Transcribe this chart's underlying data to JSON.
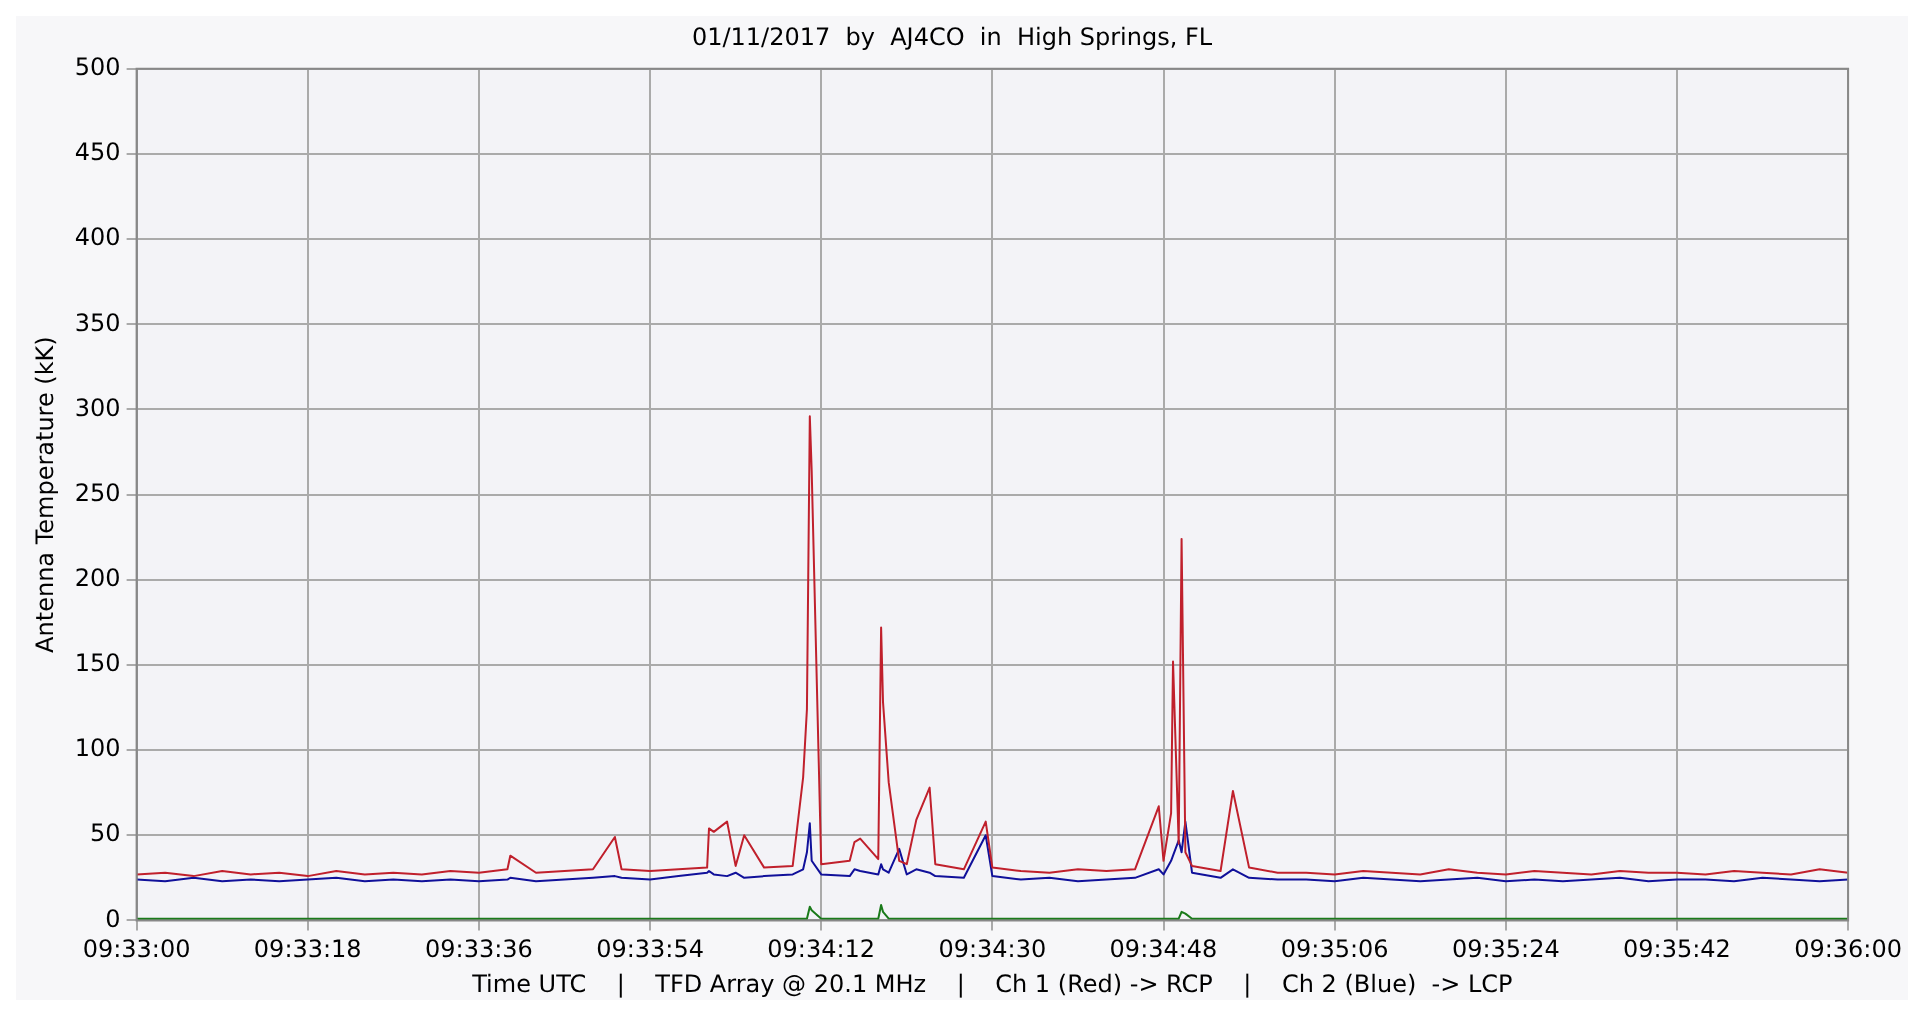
{
  "chart_data": {
    "type": "line",
    "title": "01/11/2017  by  AJ4CO  in  High Springs, FL",
    "xlabel": "Time UTC    |    TFD Array @ 20.1 MHz    |    Ch 1 (Red) -> RCP    |    Ch 2 (Blue)  -> LCP",
    "ylabel": "Antenna Temperature (kK)",
    "x": [
      9.55,
      9.550833,
      9.551667,
      9.5525,
      9.553333,
      9.554167,
      9.555,
      9.555833,
      9.556667,
      9.5575,
      9.558333,
      9.559167,
      9.56,
      9.560833,
      9.560917,
      9.561667,
      9.5625,
      9.563333,
      9.563972,
      9.564167,
      9.565,
      9.565833,
      9.566667,
      9.566722,
      9.566861,
      9.56725,
      9.5675,
      9.56775,
      9.568333,
      9.569167,
      9.569472,
      9.569583,
      9.569667,
      9.569722,
      9.57,
      9.570833,
      9.570972,
      9.571139,
      9.571667,
      9.57175,
      9.571806,
      9.571972,
      9.572278,
      9.5725,
      9.572778,
      9.573167,
      9.573333,
      9.574167,
      9.574806,
      9.575,
      9.575833,
      9.576667,
      9.5775,
      9.578333,
      9.579167,
      9.579861,
      9.58,
      9.580222,
      9.580278,
      9.580444,
      9.580528,
      9.580639,
      9.580833,
      9.581667,
      9.582028,
      9.5825,
      9.583333,
      9.584167,
      9.585,
      9.585833,
      9.586667,
      9.5875,
      9.588333,
      9.589167,
      9.59,
      9.590833,
      9.591667,
      9.5925,
      9.593333,
      9.594167,
      9.595,
      9.595833,
      9.596667,
      9.5975,
      9.598333,
      9.599167,
      9.6
    ],
    "series": [
      {
        "color": "#c0202c",
        "values": [
          27,
          28,
          26,
          29,
          27,
          28,
          26,
          29,
          27,
          28,
          27,
          29,
          28,
          30,
          38,
          28,
          29,
          30,
          49,
          30,
          29,
          30,
          31,
          54,
          52,
          58,
          32,
          50,
          31,
          32,
          84,
          124,
          296,
          264,
          33,
          35,
          46,
          48,
          36,
          172,
          128,
          81,
          35,
          33,
          59,
          78,
          33,
          30,
          58,
          31,
          29,
          28,
          30,
          29,
          30,
          67,
          35,
          63,
          152,
          45,
          224,
          40,
          32,
          29,
          76,
          31,
          28,
          28,
          27,
          29,
          28,
          27,
          30,
          28,
          27,
          29,
          28,
          27,
          29,
          28,
          28,
          27,
          29,
          28,
          27,
          30,
          28
        ]
      },
      {
        "color": "#10109a",
        "values": [
          24,
          23,
          25,
          23,
          24,
          23,
          24,
          25,
          23,
          24,
          23,
          24,
          23,
          24,
          25,
          23,
          24,
          25,
          26,
          25,
          24,
          26,
          28,
          29,
          27,
          26,
          28,
          25,
          26,
          27,
          30,
          40,
          57,
          35,
          27,
          26,
          30,
          29,
          27,
          33,
          30,
          28,
          42,
          27,
          30,
          28,
          26,
          25,
          50,
          26,
          24,
          25,
          23,
          24,
          25,
          30,
          27,
          35,
          38,
          47,
          40,
          58,
          28,
          25,
          30,
          25,
          24,
          24,
          23,
          25,
          24,
          23,
          24,
          25,
          23,
          24,
          23,
          24,
          25,
          23,
          24,
          24,
          23,
          25,
          24,
          23,
          24
        ]
      },
      {
        "color": "#1a7a1a",
        "values": [
          1,
          1,
          1,
          1,
          1,
          1,
          1,
          1,
          1,
          1,
          1,
          1,
          1,
          1,
          1,
          1,
          1,
          1,
          1,
          1,
          1,
          1,
          1,
          1,
          1,
          1,
          1,
          1,
          1,
          1,
          1,
          1,
          8,
          6,
          1,
          1,
          1,
          1,
          1,
          9,
          5,
          1,
          1,
          1,
          1,
          1,
          1,
          1,
          1,
          1,
          1,
          1,
          1,
          1,
          1,
          1,
          1,
          1,
          1,
          1,
          5,
          4,
          1,
          1,
          1,
          1,
          1,
          1,
          1,
          1,
          1,
          1,
          1,
          1,
          1,
          1,
          1,
          1,
          1,
          1,
          1,
          1,
          1,
          1,
          1,
          1,
          1
        ]
      }
    ],
    "xlim": [
      9.55,
      9.6
    ],
    "xticks": [
      {
        "value": 9.55,
        "label": "09:33:00"
      },
      {
        "value": 9.555,
        "label": "09:33:18"
      },
      {
        "value": 9.56,
        "label": "09:33:36"
      },
      {
        "value": 9.565,
        "label": "09:33:54"
      },
      {
        "value": 9.57,
        "label": "09:34:12"
      },
      {
        "value": 9.575,
        "label": "09:34:30"
      },
      {
        "value": 9.58,
        "label": "09:34:48"
      },
      {
        "value": 9.585,
        "label": "09:35:06"
      },
      {
        "value": 9.59,
        "label": "09:35:24"
      },
      {
        "value": 9.595,
        "label": "09:35:42"
      },
      {
        "value": 9.6,
        "label": "09:36:00"
      }
    ],
    "ylim": [
      0,
      500
    ],
    "yticks": [
      0,
      50,
      100,
      150,
      200,
      250,
      300,
      350,
      400,
      450,
      500
    ],
    "grid": true,
    "marker": "none",
    "line_style": "solid"
  }
}
